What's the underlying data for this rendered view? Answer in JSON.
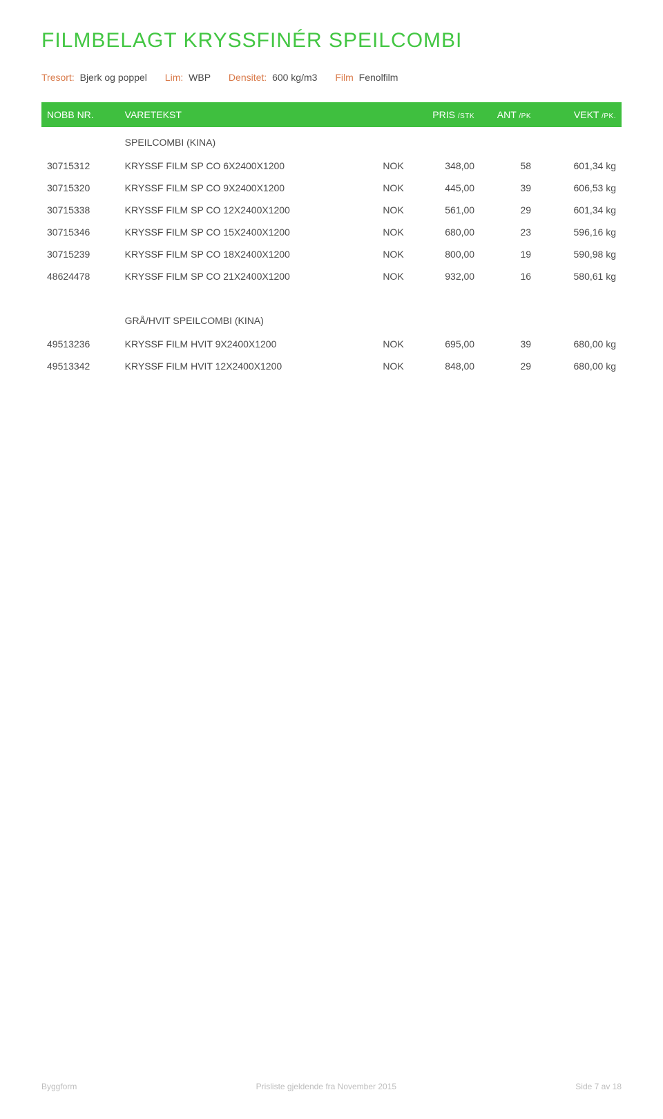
{
  "title": "FILMBELAGT KRYSSFINÉR SPEILCOMBI",
  "title_color": "#43c643",
  "meta": {
    "tresort_label": "Tresort:",
    "tresort_value": "Bjerk og poppel",
    "lim_label": "Lim:",
    "lim_value": "WBP",
    "density_label": "Densitet:",
    "density_value": "600 kg/m3",
    "film_label": "Film",
    "film_value": "Fenolfilm",
    "label_color": "#d97a4a",
    "value_color": "#4a4a4a"
  },
  "header": {
    "nobb": "NOBB NR.",
    "varetekst": "VARETEKST",
    "pris": "PRIS",
    "pris_sub": "/STK",
    "ant": "ANT",
    "ant_sub": "/PK",
    "vekt": "VEKT",
    "vekt_sub": "/PK.",
    "bg": "#3fbf3f",
    "fg": "#ffffff"
  },
  "sections": [
    {
      "title": "SPEILCOMBI (KINA)",
      "rows": [
        {
          "nobb": "30715312",
          "text": "KRYSSF FILM SP CO  6X2400X1200",
          "cur": "NOK",
          "price": "348,00",
          "ant": "58",
          "vekt": "601,34 kg"
        },
        {
          "nobb": "30715320",
          "text": "KRYSSF FILM SP CO  9X2400X1200",
          "cur": "NOK",
          "price": "445,00",
          "ant": "39",
          "vekt": "606,53 kg"
        },
        {
          "nobb": "30715338",
          "text": "KRYSSF FILM SP CO 12X2400X1200",
          "cur": "NOK",
          "price": "561,00",
          "ant": "29",
          "vekt": "601,34 kg"
        },
        {
          "nobb": "30715346",
          "text": "KRYSSF FILM SP CO 15X2400X1200",
          "cur": "NOK",
          "price": "680,00",
          "ant": "23",
          "vekt": "596,16 kg"
        },
        {
          "nobb": "30715239",
          "text": "KRYSSF FILM SP CO 18X2400X1200",
          "cur": "NOK",
          "price": "800,00",
          "ant": "19",
          "vekt": "590,98 kg"
        },
        {
          "nobb": "48624478",
          "text": "KRYSSF FILM SP CO 21X2400X1200",
          "cur": "NOK",
          "price": "932,00",
          "ant": "16",
          "vekt": "580,61 kg"
        }
      ]
    },
    {
      "title": "GRÅ/HVIT SPEILCOMBI (KINA)",
      "rows": [
        {
          "nobb": "49513236",
          "text": "KRYSSF FILM HVIT 9X2400X1200",
          "cur": "NOK",
          "price": "695,00",
          "ant": "39",
          "vekt": "680,00 kg"
        },
        {
          "nobb": "49513342",
          "text": "KRYSSF FILM HVIT 12X2400X1200",
          "cur": "NOK",
          "price": "848,00",
          "ant": "29",
          "vekt": "680,00 kg"
        }
      ]
    }
  ],
  "footer": {
    "left": "Byggform",
    "center": "Prisliste gjeldende fra November 2015",
    "right": "Side 7 av 18",
    "color": "#bdbdbd"
  },
  "body_text_color": "#4a4a4a",
  "background_color": "#ffffff"
}
